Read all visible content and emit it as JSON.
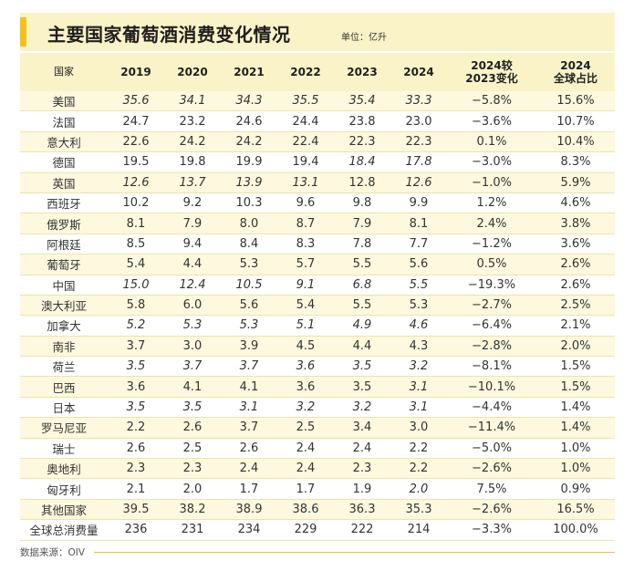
{
  "title": "主要国家葡萄酒消费变化情况",
  "unit": "单位：亿升",
  "source": "数据来源：OIV",
  "header": {
    "country": "国家",
    "y2019": "2019",
    "y2020": "2020",
    "y2021": "2021",
    "y2022": "2022",
    "y2023": "2023",
    "y2024": "2024",
    "change_line1": "2024较",
    "change_line2": "2023变化",
    "share_line1": "2024",
    "share_line2": "全球占比"
  },
  "rows": [
    {
      "c": "美国",
      "v": [
        "35.6",
        "34.1",
        "34.3",
        "35.5",
        "35.4",
        "33.3"
      ],
      "chg": "−5.8%",
      "share": "15.6%",
      "it": [
        1,
        1,
        1,
        1,
        1,
        1
      ]
    },
    {
      "c": "法国",
      "v": [
        "24.7",
        "23.2",
        "24.6",
        "24.4",
        "23.8",
        "23.0"
      ],
      "chg": "−3.6%",
      "share": "10.7%",
      "it": [
        0,
        0,
        0,
        0,
        0,
        0
      ]
    },
    {
      "c": "意大利",
      "v": [
        "22.6",
        "24.2",
        "24.2",
        "22.4",
        "22.3",
        "22.3"
      ],
      "chg": "0.1%",
      "share": "10.4%",
      "it": [
        0,
        0,
        0,
        0,
        0,
        0
      ]
    },
    {
      "c": "德国",
      "v": [
        "19.5",
        "19.8",
        "19.9",
        "19.4",
        "18.4",
        "17.8"
      ],
      "chg": "−3.0%",
      "share": "8.3%",
      "it": [
        0,
        0,
        0,
        0,
        1,
        1
      ]
    },
    {
      "c": "英国",
      "v": [
        "12.6",
        "13.7",
        "13.9",
        "13.1",
        "12.8",
        "12.6"
      ],
      "chg": "−1.0%",
      "share": "5.9%",
      "it": [
        1,
        1,
        1,
        1,
        0,
        1
      ]
    },
    {
      "c": "西班牙",
      "v": [
        "10.2",
        "9.2",
        "10.3",
        "9.6",
        "9.8",
        "9.9"
      ],
      "chg": "1.2%",
      "share": "4.6%",
      "it": [
        0,
        0,
        0,
        0,
        0,
        0
      ]
    },
    {
      "c": "俄罗斯",
      "v": [
        "8.1",
        "7.9",
        "8.0",
        "8.7",
        "7.9",
        "8.1"
      ],
      "chg": "2.4%",
      "share": "3.8%",
      "it": [
        0,
        0,
        0,
        0,
        0,
        0
      ]
    },
    {
      "c": "阿根廷",
      "v": [
        "8.5",
        "9.4",
        "8.4",
        "8.3",
        "7.8",
        "7.7"
      ],
      "chg": "−1.2%",
      "share": "3.6%",
      "it": [
        0,
        0,
        0,
        0,
        0,
        0
      ]
    },
    {
      "c": "葡萄牙",
      "v": [
        "5.4",
        "4.4",
        "5.3",
        "5.7",
        "5.5",
        "5.6"
      ],
      "chg": "0.5%",
      "share": "2.6%",
      "it": [
        0,
        0,
        0,
        0,
        0,
        0
      ]
    },
    {
      "c": "中国",
      "v": [
        "15.0",
        "12.4",
        "10.5",
        "9.1",
        "6.8",
        "5.5"
      ],
      "chg": "−19.3%",
      "share": "2.6%",
      "it": [
        1,
        1,
        1,
        1,
        1,
        1
      ]
    },
    {
      "c": "澳大利亚",
      "v": [
        "5.8",
        "6.0",
        "5.6",
        "5.4",
        "5.5",
        "5.3"
      ],
      "chg": "−2.7%",
      "share": "2.5%",
      "it": [
        0,
        0,
        0,
        0,
        0,
        0
      ]
    },
    {
      "c": "加拿大",
      "v": [
        "5.2",
        "5.3",
        "5.3",
        "5.1",
        "4.9",
        "4.6"
      ],
      "chg": "−6.4%",
      "share": "2.1%",
      "it": [
        1,
        1,
        1,
        1,
        1,
        1
      ]
    },
    {
      "c": "南非",
      "v": [
        "3.7",
        "3.0",
        "3.9",
        "4.5",
        "4.4",
        "4.3"
      ],
      "chg": "−2.8%",
      "share": "2.0%",
      "it": [
        0,
        0,
        0,
        0,
        0,
        0
      ]
    },
    {
      "c": "荷兰",
      "v": [
        "3.5",
        "3.7",
        "3.7",
        "3.6",
        "3.5",
        "3.2"
      ],
      "chg": "−8.1%",
      "share": "1.5%",
      "it": [
        1,
        1,
        1,
        1,
        1,
        1
      ]
    },
    {
      "c": "巴西",
      "v": [
        "3.6",
        "4.1",
        "4.1",
        "3.6",
        "3.5",
        "3.1"
      ],
      "chg": "−10.1%",
      "share": "1.5%",
      "it": [
        0,
        0,
        0,
        0,
        0,
        1
      ]
    },
    {
      "c": "日本",
      "v": [
        "3.5",
        "3.5",
        "3.1",
        "3.2",
        "3.2",
        "3.1"
      ],
      "chg": "−4.4%",
      "share": "1.4%",
      "it": [
        1,
        1,
        1,
        1,
        1,
        1
      ]
    },
    {
      "c": "罗马尼亚",
      "v": [
        "2.2",
        "2.6",
        "3.7",
        "2.5",
        "3.4",
        "3.0"
      ],
      "chg": "−11.4%",
      "share": "1.4%",
      "it": [
        0,
        0,
        0,
        0,
        0,
        0
      ]
    },
    {
      "c": "瑞士",
      "v": [
        "2.6",
        "2.5",
        "2.6",
        "2.4",
        "2.4",
        "2.2"
      ],
      "chg": "−5.0%",
      "share": "1.0%",
      "it": [
        0,
        0,
        0,
        0,
        0,
        0
      ]
    },
    {
      "c": "奥地利",
      "v": [
        "2.3",
        "2.3",
        "2.4",
        "2.4",
        "2.3",
        "2.2"
      ],
      "chg": "−2.6%",
      "share": "1.0%",
      "it": [
        0,
        0,
        0,
        0,
        0,
        0
      ]
    },
    {
      "c": "匈牙利",
      "v": [
        "2.1",
        "2.0",
        "1.7",
        "1.7",
        "1.9",
        "2.0"
      ],
      "chg": "7.5%",
      "share": "0.9%",
      "it": [
        0,
        0,
        0,
        0,
        0,
        1
      ]
    },
    {
      "c": "其他国家",
      "v": [
        "39.5",
        "38.2",
        "38.9",
        "38.6",
        "36.3",
        "35.3"
      ],
      "chg": "−2.6%",
      "share": "16.5%",
      "it": [
        0,
        0,
        0,
        0,
        0,
        0
      ]
    },
    {
      "c": "全球总消费量",
      "v": [
        "236",
        "231",
        "234",
        "229",
        "222",
        "214"
      ],
      "chg": "−3.3%",
      "share": "100.0%",
      "it": [
        0,
        0,
        0,
        0,
        0,
        0
      ]
    }
  ]
}
